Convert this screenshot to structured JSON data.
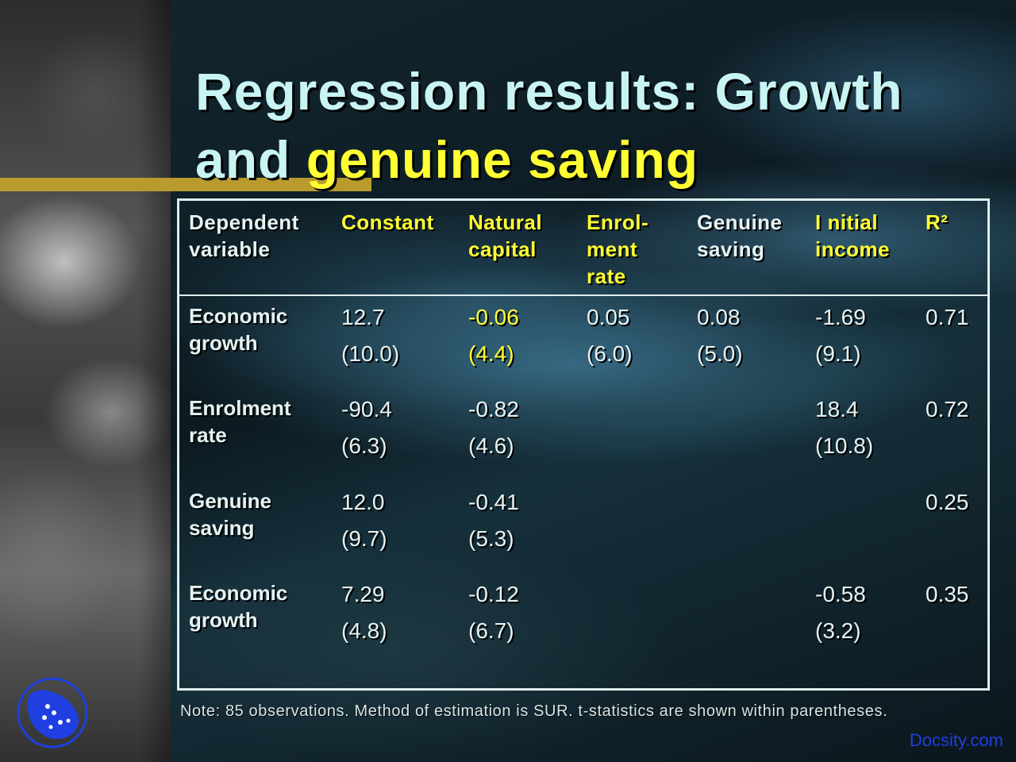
{
  "slide": {
    "title_line1": "Regression results: Growth",
    "title_line2_plain": "and ",
    "title_line2_highlight": "genuine saving",
    "note": "Note: 85 observations. Method of estimation is SUR. t-statistics are shown within parentheses.",
    "watermark": "Docsity.com"
  },
  "colors": {
    "title": "#c9f4f4",
    "highlight": "#ffff33",
    "accent_bar": "#b89b2c",
    "text": "#e6f3f3"
  },
  "table": {
    "headers": [
      "Dependent\nvariable",
      "Constant",
      "Natural\ncapital",
      "Enrol-\nment\nrate",
      "Genuine\nsaving",
      "I nitial\nincome",
      "R²"
    ],
    "rows": [
      {
        "label": "Economic\ngrowth",
        "cells": [
          "12.7\n(10.0)",
          "-0.06\n(4.4)",
          "0.05\n(6.0)",
          "0.08\n(5.0)",
          "-1.69\n(9.1)",
          "0.71"
        ]
      },
      {
        "label": "Enrolment\nrate",
        "cells": [
          "-90.4\n(6.3)",
          "-0.82\n(4.6)",
          "",
          "",
          "18.4\n(10.8)",
          "0.72"
        ]
      },
      {
        "label": "Genuine\nsaving",
        "cells": [
          "12.0\n(9.7)",
          "-0.41\n(5.3)",
          "",
          "",
          "",
          "0.25"
        ]
      },
      {
        "label": "Economic\ngrowth",
        "cells": [
          "7.29\n(4.8)",
          "-0.12\n(6.7)",
          "",
          "",
          "-0.58\n(3.2)",
          "0.35"
        ]
      }
    ]
  }
}
